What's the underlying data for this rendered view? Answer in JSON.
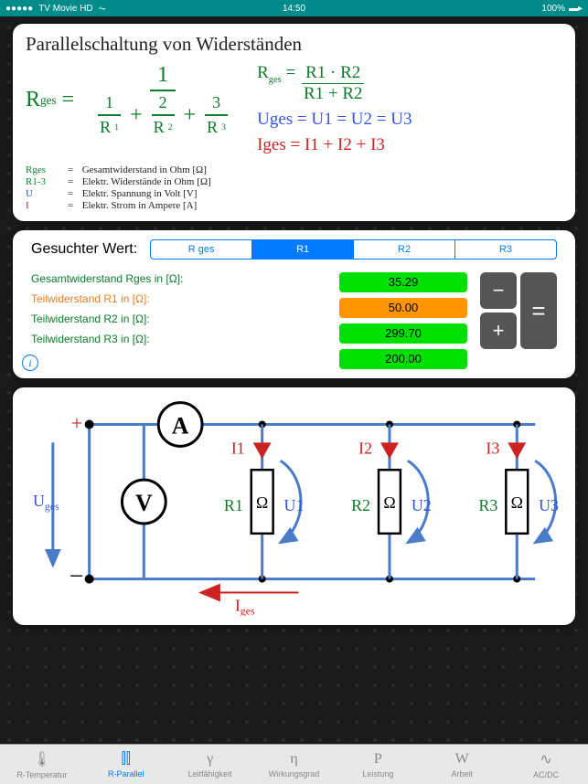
{
  "status": {
    "carrier": "TV Movie HD",
    "time": "14:50",
    "battery": "100%"
  },
  "card1": {
    "title": "Parallelschaltung von Widerständen",
    "formula_main_lhs": "R",
    "formula_main_sub": "ges",
    "formula_r2_lhs": "R",
    "formula_r2_num": "R1 · R2",
    "formula_r2_den": "R1  +  R2",
    "formula_u": "Uges = U1 = U2 = U3",
    "formula_i": "Iges  =  I1  +  I2  +  I3",
    "legend": [
      {
        "sym": "Rges",
        "cls": "lg-green",
        "eq": "=",
        "desc": "Gesamtwiderstand in Ohm [Ω]"
      },
      {
        "sym": "R1-3",
        "cls": "lg-green",
        "eq": "=",
        "desc": "Elektr. Widerstände in Ohm [Ω]"
      },
      {
        "sym": "U",
        "cls": "lg-blue",
        "eq": "=",
        "desc": "Elektr. Spannung in Volt [V]"
      },
      {
        "sym": "I",
        "cls": "lg-red",
        "eq": "=",
        "desc": "Elektr. Strom in Ampere [A]"
      }
    ]
  },
  "card2": {
    "search_label": "Gesuchter Wert:",
    "segments": [
      "R ges",
      "R1",
      "R2",
      "R3"
    ],
    "active_segment": 1,
    "rows": [
      {
        "label": "Gesamtwiderstand Rges in [Ω]:",
        "value": "35.29",
        "labelCls": "lbl-green",
        "fieldCls": "vf-green"
      },
      {
        "label": "Teilwiderstand R1 in [Ω]:",
        "value": "50.00",
        "labelCls": "lbl-orange",
        "fieldCls": "vf-orange"
      },
      {
        "label": "Teilwiderstand R2 in [Ω]:",
        "value": "299.70",
        "labelCls": "lbl-green",
        "fieldCls": "vf-green"
      },
      {
        "label": "Teilwiderstand R3 in [Ω]:",
        "value": "200.00",
        "labelCls": "lbl-green",
        "fieldCls": "vf-green"
      }
    ],
    "keys": {
      "minus": "−",
      "plus": "+",
      "eq": "="
    }
  },
  "circuit": {
    "plus": "+",
    "minus": "−",
    "Uges": "Uges",
    "A": "A",
    "V": "V",
    "I1": "I1",
    "I2": "I2",
    "I3": "I3",
    "R1": "R1",
    "R2": "R2",
    "R3": "R3",
    "U1": "U1",
    "U2": "U2",
    "U3": "U3",
    "Iges": "Iges",
    "omega": "Ω",
    "colors": {
      "wire": "#4a7bc8",
      "red": "#cc2222",
      "green": "#0a7d2a",
      "blue": "#3355dd"
    }
  },
  "tabs": [
    {
      "icon": "🌡",
      "label": "R-Temperatur"
    },
    {
      "icon": "⫿⫿",
      "label": "R-Parallel"
    },
    {
      "icon": "γ",
      "label": "Leitfähigkeit"
    },
    {
      "icon": "η",
      "label": "Wirkungsgrad"
    },
    {
      "icon": "P",
      "label": "Leistung"
    },
    {
      "icon": "W",
      "label": "Arbeit"
    },
    {
      "icon": "∿",
      "label": "AC/DC"
    }
  ],
  "active_tab": 1
}
